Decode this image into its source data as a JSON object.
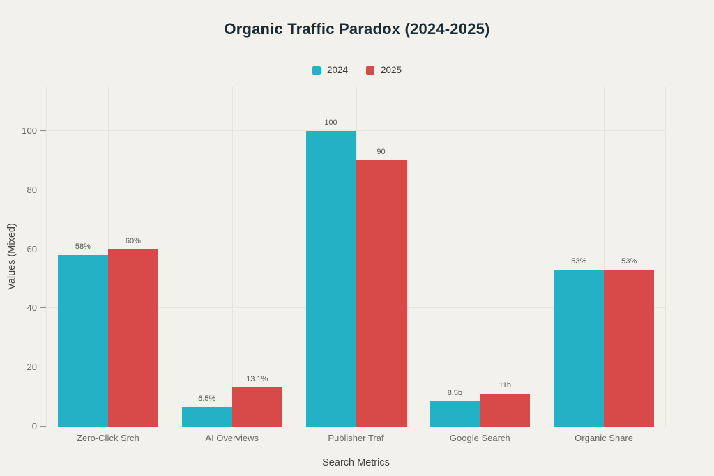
{
  "chart_data": {
    "type": "bar",
    "title": "Organic Traffic Paradox (2024-2025)",
    "categories": [
      "Zero-Click Srch",
      "AI Overviews",
      "Publisher Traf",
      "Google Search",
      "Organic Share"
    ],
    "series": [
      {
        "name": "2024",
        "color": "#23b1c5",
        "values": [
          58,
          6.5,
          100,
          8.5,
          53
        ],
        "labels": [
          "58%",
          "6.5%",
          "100",
          "8.5b",
          "53%"
        ]
      },
      {
        "name": "2025",
        "color": "#d84a4a",
        "values": [
          60,
          13.1,
          90,
          11,
          53
        ],
        "labels": [
          "60%",
          "13.1%",
          "90",
          "11b",
          "53%"
        ]
      }
    ],
    "xlabel": "Search Metrics",
    "ylabel": "Values (Mixed)",
    "yticks": [
      0,
      20,
      40,
      60,
      80,
      100
    ],
    "ylim": [
      0,
      100
    ],
    "grid": true,
    "legend_position": "top"
  },
  "colors": {
    "background": "#f2f1ec",
    "gridline": "#e5e4dd",
    "axis_line": "#8f8e88",
    "title_text": "#1b2b33",
    "tick_text": "#6a6960",
    "value_label_text": "#56554e",
    "series_2024": "#23b1c5",
    "series_2025": "#d84a4a"
  }
}
